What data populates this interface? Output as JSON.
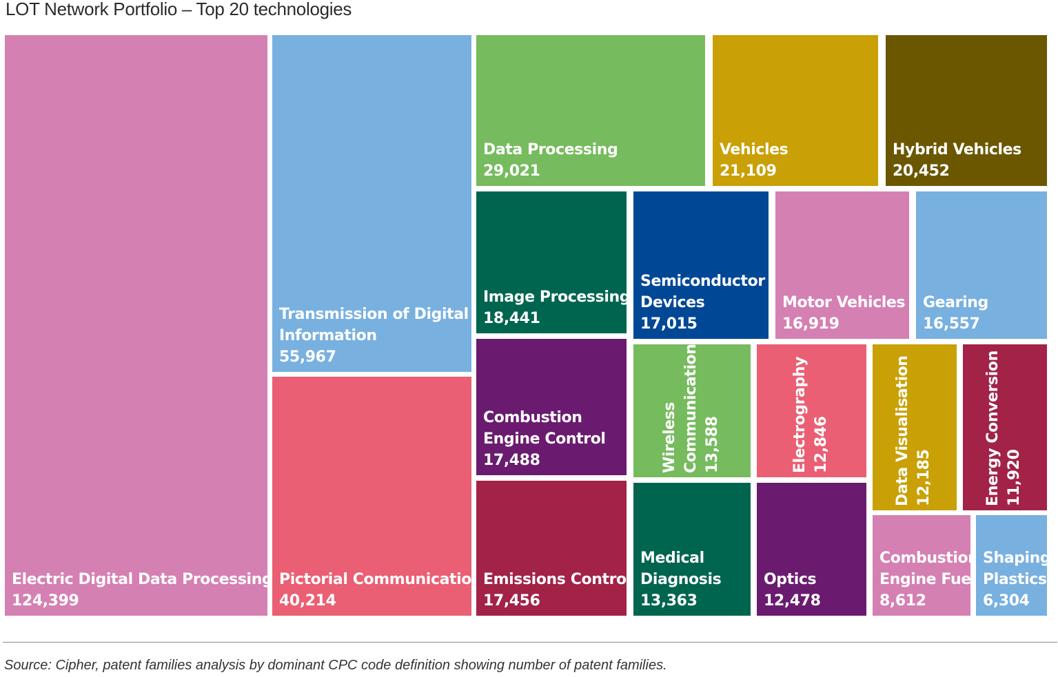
{
  "title": "LOT Network Portfolio – Top 20 technologies",
  "source": "Source: Cipher, patent families analysis by dominant CPC code definition showing number of patent families.",
  "chart_data": {
    "type": "treemap",
    "items": [
      {
        "label": "Electric Digital Data Processing",
        "value": "124,399",
        "color": "#d580b2"
      },
      {
        "label": "Transmission of Digital Information",
        "value": "55,967",
        "color": "#78b0e0"
      },
      {
        "label": "Pictorial Communication",
        "value": "40,214",
        "color": "#ea5f73"
      },
      {
        "label": "Data Processing",
        "value": "29,021",
        "color": "#76bb5d"
      },
      {
        "label": "Vehicles",
        "value": "21,109",
        "color": "#c9a005"
      },
      {
        "label": "Hybrid Vehicles",
        "value": "20,452",
        "color": "#6b5700"
      },
      {
        "label": "Image Processing",
        "value": "18,441",
        "color": "#00654f"
      },
      {
        "label": "Combustion Engine Control",
        "value": "17,488",
        "color": "#6a1b6f"
      },
      {
        "label": "Emissions Control",
        "value": "17,456",
        "color": "#a22248"
      },
      {
        "label": "Semiconductor Devices",
        "value": "17,015",
        "color": "#004895"
      },
      {
        "label": "Motor Vehicles",
        "value": "16,919",
        "color": "#d580b2"
      },
      {
        "label": "Gearing",
        "value": "16,557",
        "color": "#78b0e0"
      },
      {
        "label": "Wireless Communication",
        "value": "13,588",
        "color": "#76bb5d"
      },
      {
        "label": "Medical Diagnosis",
        "value": "13,363",
        "color": "#00654f"
      },
      {
        "label": "Electrography",
        "value": "12,846",
        "color": "#ea5f73"
      },
      {
        "label": "Optics",
        "value": "12,478",
        "color": "#6a1b6f"
      },
      {
        "label": "Data Visualisation",
        "value": "12,185",
        "color": "#c9a005"
      },
      {
        "label": "Energy Conversion",
        "value": "11,920",
        "color": "#a22248"
      },
      {
        "label": "Combustion Engine Fuel",
        "value": "8,612",
        "color": "#d580b2"
      },
      {
        "label": "Shaping Plastics",
        "value": "6,304",
        "color": "#78b0e0"
      }
    ]
  }
}
